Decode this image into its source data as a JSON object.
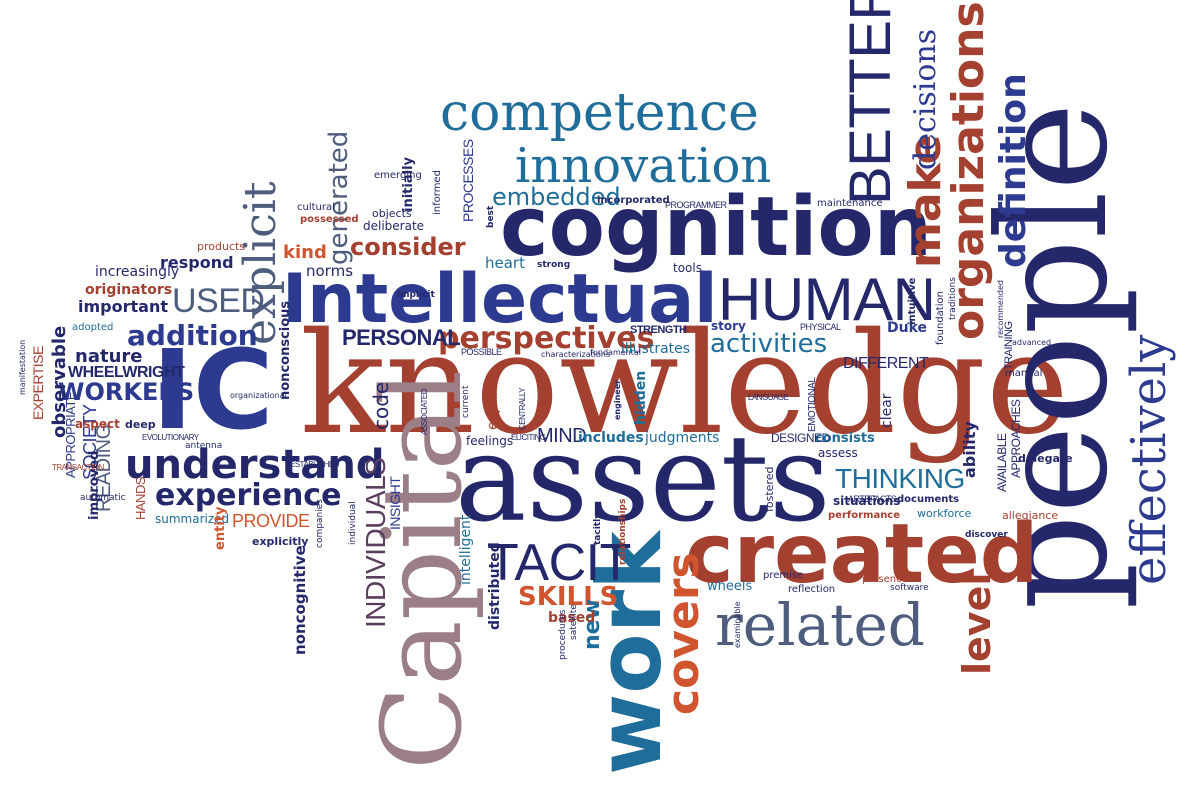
{
  "palette": {
    "navy": "#24286b",
    "royal": "#2c3a8f",
    "teal": "#1f6d9a",
    "rust": "#a3402f",
    "orange": "#d0552f",
    "mauve": "#9c7f86",
    "slate": "#4e5d7e",
    "plum": "#5b3d5d"
  },
  "words": [
    {
      "text": "knowledge",
      "color": "rust"
    },
    {
      "text": "people",
      "color": "navy"
    },
    {
      "text": "assets",
      "color": "navy"
    },
    {
      "text": "Capital",
      "color": "mauve"
    },
    {
      "text": "cognition",
      "color": "navy"
    },
    {
      "text": "Intellectual",
      "color": "royal"
    },
    {
      "text": "IC",
      "color": "royal"
    },
    {
      "text": "created",
      "color": "rust"
    },
    {
      "text": "work",
      "color": "teal"
    },
    {
      "text": "competence",
      "color": "teal"
    },
    {
      "text": "innovation",
      "color": "teal"
    },
    {
      "text": "HUMAN",
      "color": "navy"
    },
    {
      "text": "related",
      "color": "slate"
    },
    {
      "text": "effectively",
      "color": "royal"
    },
    {
      "text": "organizations",
      "color": "rust"
    },
    {
      "text": "BETTER",
      "color": "navy"
    },
    {
      "text": "make",
      "color": "rust"
    },
    {
      "text": "definition",
      "color": "royal"
    },
    {
      "text": "decisions",
      "color": "royal"
    },
    {
      "text": "level",
      "color": "rust"
    },
    {
      "text": "explicit",
      "color": "slate"
    },
    {
      "text": "understand",
      "color": "navy"
    },
    {
      "text": "experience",
      "color": "navy"
    },
    {
      "text": "TACIT",
      "color": "navy"
    },
    {
      "text": "INDIVIDUALS",
      "color": "plum"
    },
    {
      "text": "covers",
      "color": "orange"
    },
    {
      "text": "perspectives",
      "color": "rust"
    },
    {
      "text": "consider",
      "color": "rust"
    },
    {
      "text": "USED",
      "color": "slate"
    },
    {
      "text": "addition",
      "color": "royal"
    },
    {
      "text": "activities",
      "color": "teal"
    },
    {
      "text": "THINKING",
      "color": "teal"
    },
    {
      "text": "SKILLS",
      "color": "orange"
    },
    {
      "text": "PERSONAL",
      "color": "navy"
    },
    {
      "text": "embedded",
      "color": "teal"
    },
    {
      "text": "WORKERS",
      "color": "royal"
    },
    {
      "text": "generated",
      "color": "slate"
    },
    {
      "text": "important",
      "color": "navy"
    },
    {
      "text": "respond",
      "color": "navy"
    },
    {
      "text": "kind",
      "color": "orange"
    },
    {
      "text": "nature",
      "color": "navy"
    },
    {
      "text": "READING",
      "color": "slate"
    },
    {
      "text": "SOCIETY",
      "color": "royal"
    },
    {
      "text": "WHEELWRIGHT",
      "color": "navy"
    },
    {
      "text": "PROVIDE",
      "color": "orange"
    },
    {
      "text": "originators",
      "color": "rust"
    },
    {
      "text": "increasingly",
      "color": "navy"
    },
    {
      "text": "observable",
      "color": "navy"
    },
    {
      "text": "EXPERTISE",
      "color": "rust"
    },
    {
      "text": "summarized",
      "color": "teal"
    },
    {
      "text": "code",
      "color": "navy"
    },
    {
      "text": "explain",
      "color": "rust"
    },
    {
      "text": "MIND",
      "color": "navy"
    },
    {
      "text": "includes",
      "color": "teal"
    },
    {
      "text": "judgments",
      "color": "teal"
    },
    {
      "text": "consists",
      "color": "teal"
    },
    {
      "text": "ability",
      "color": "navy"
    },
    {
      "text": "feelings",
      "color": "navy"
    },
    {
      "text": "INSIGHT",
      "color": "royal"
    },
    {
      "text": "intelligent",
      "color": "teal"
    },
    {
      "text": "distributed",
      "color": "navy"
    },
    {
      "text": "new",
      "color": "teal"
    },
    {
      "text": "based",
      "color": "rust"
    },
    {
      "text": "wheels",
      "color": "teal"
    },
    {
      "text": "workforce",
      "color": "teal"
    },
    {
      "text": "norms",
      "color": "navy"
    },
    {
      "text": "heart",
      "color": "teal"
    },
    {
      "text": "tools",
      "color": "navy"
    },
    {
      "text": "DIFFERENT",
      "color": "navy"
    },
    {
      "text": "Duke",
      "color": "royal"
    },
    {
      "text": "story",
      "color": "royal"
    },
    {
      "text": "illustrates",
      "color": "teal"
    },
    {
      "text": "situations",
      "color": "navy"
    },
    {
      "text": "hidden",
      "color": "teal"
    },
    {
      "text": "DESIGNED",
      "color": "navy"
    },
    {
      "text": "assess",
      "color": "navy"
    },
    {
      "text": "clear",
      "color": "navy"
    },
    {
      "text": "deliberate",
      "color": "navy"
    },
    {
      "text": "initially",
      "color": "navy"
    },
    {
      "text": "PROCESSES",
      "color": "royal"
    },
    {
      "text": "emerging",
      "color": "navy"
    },
    {
      "text": "incorporated",
      "color": "navy"
    },
    {
      "text": "objects",
      "color": "navy"
    },
    {
      "text": "possessed",
      "color": "rust"
    },
    {
      "text": "cultural",
      "color": "navy"
    },
    {
      "text": "products",
      "color": "rust"
    },
    {
      "text": "adopted",
      "color": "teal"
    },
    {
      "text": "aspect",
      "color": "rust"
    },
    {
      "text": "entity",
      "color": "orange"
    },
    {
      "text": "explicitly",
      "color": "navy"
    },
    {
      "text": "noncognitive",
      "color": "navy"
    },
    {
      "text": "HANDS",
      "color": "rust"
    },
    {
      "text": "improved",
      "color": "navy"
    },
    {
      "text": "APPROPRIATE",
      "color": "royal"
    },
    {
      "text": "deep",
      "color": "navy"
    },
    {
      "text": "STRENGTH",
      "color": "navy"
    },
    {
      "text": "manual",
      "color": "navy"
    },
    {
      "text": "strong",
      "color": "navy"
    },
    {
      "text": "implicit",
      "color": "navy"
    },
    {
      "text": "delegate",
      "color": "navy"
    },
    {
      "text": "AVAILABLE",
      "color": "navy"
    },
    {
      "text": "APPROACHES",
      "color": "navy"
    },
    {
      "text": "allegiance",
      "color": "rust"
    },
    {
      "text": "discover",
      "color": "navy"
    },
    {
      "text": "performance",
      "color": "rust"
    },
    {
      "text": "ARTEFACTS",
      "color": "navy"
    },
    {
      "text": "documents",
      "color": "navy"
    },
    {
      "text": "software",
      "color": "navy"
    },
    {
      "text": "presence",
      "color": "rust"
    },
    {
      "text": "premise",
      "color": "navy"
    },
    {
      "text": "reflection",
      "color": "navy"
    },
    {
      "text": "satellite",
      "color": "navy"
    },
    {
      "text": "procedures",
      "color": "navy"
    },
    {
      "text": "fostered",
      "color": "navy"
    },
    {
      "text": "nonconscious",
      "color": "navy"
    },
    {
      "text": "TRAINING",
      "color": "navy"
    },
    {
      "text": "intuitive",
      "color": "navy"
    },
    {
      "text": "foundation",
      "color": "navy"
    },
    {
      "text": "traditions",
      "color": "navy"
    },
    {
      "text": "POSSIBLE",
      "color": "navy"
    },
    {
      "text": "PHYSICAL",
      "color": "navy"
    },
    {
      "text": "EMOTIONAL",
      "color": "navy"
    },
    {
      "text": "maintenance",
      "color": "navy"
    },
    {
      "text": "PROGRAMMER",
      "color": "navy"
    },
    {
      "text": "automatic",
      "color": "navy"
    },
    {
      "text": "best",
      "color": "navy"
    },
    {
      "text": "informed",
      "color": "navy"
    },
    {
      "text": "antenna",
      "color": "navy"
    },
    {
      "text": "tacitly",
      "color": "navy"
    },
    {
      "text": "relationships",
      "color": "rust"
    },
    {
      "text": "EVOLUTIONARY",
      "color": "navy"
    },
    {
      "text": "ESTABLISHED",
      "color": "navy"
    },
    {
      "text": "LANGUAGE",
      "color": "navy"
    },
    {
      "text": "ASSOCIATED",
      "color": "navy"
    },
    {
      "text": "fundamental",
      "color": "navy"
    },
    {
      "text": "CENTRALLY",
      "color": "navy"
    },
    {
      "text": "current",
      "color": "navy"
    },
    {
      "text": "engineer",
      "color": "navy"
    },
    {
      "text": "TRANSACTION",
      "color": "rust"
    },
    {
      "text": "manifestation",
      "color": "navy"
    },
    {
      "text": "organizational",
      "color": "navy"
    },
    {
      "text": "advanced",
      "color": "navy"
    },
    {
      "text": "recommended",
      "color": "navy"
    },
    {
      "text": "companies",
      "color": "navy"
    },
    {
      "text": "individual",
      "color": "navy"
    },
    {
      "text": "examinable",
      "color": "navy"
    },
    {
      "text": "ELICITING",
      "color": "navy"
    },
    {
      "text": "characterizations",
      "color": "navy"
    }
  ]
}
